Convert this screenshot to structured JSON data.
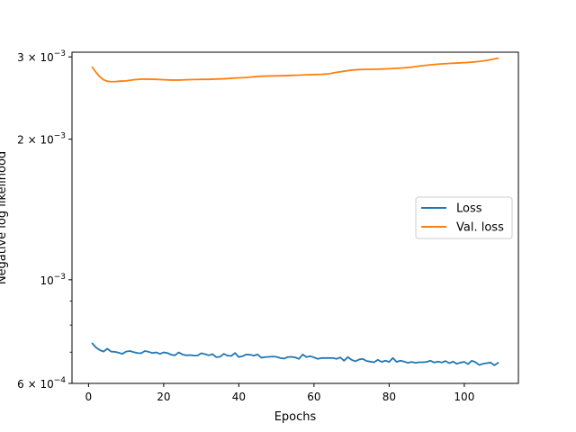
{
  "chart_data": {
    "type": "line",
    "title": "",
    "xlabel": "Epochs",
    "ylabel": "Negative log likelihood",
    "xlim": [
      -4.4,
      114.4
    ],
    "ylim": [
      0.0006,
      0.00307
    ],
    "y_scale": "log",
    "grid": false,
    "legend_position": "center-right",
    "x_ticks": [
      {
        "value": 0,
        "label": "0"
      },
      {
        "value": 20,
        "label": "20"
      },
      {
        "value": 40,
        "label": "40"
      },
      {
        "value": 60,
        "label": "60"
      },
      {
        "value": 80,
        "label": "80"
      },
      {
        "value": 100,
        "label": "100"
      }
    ],
    "y_ticks_major": [
      {
        "value": 0.0006,
        "base": "6 × 10",
        "exp": "−4"
      },
      {
        "value": 0.001,
        "base": "10",
        "exp": "−3"
      },
      {
        "value": 0.002,
        "base": "2 × 10",
        "exp": "−3"
      },
      {
        "value": 0.003,
        "base": "3 × 10",
        "exp": "−3"
      }
    ],
    "y_ticks_minor": [
      0.0007,
      0.0008,
      0.0009
    ],
    "series": [
      {
        "name": "Loss",
        "color": "#1f77b4",
        "x": [
          1,
          2,
          3,
          4,
          5,
          6,
          7,
          8,
          9,
          10,
          11,
          12,
          13,
          14,
          15,
          16,
          17,
          18,
          19,
          20,
          21,
          22,
          23,
          24,
          25,
          26,
          27,
          28,
          29,
          30,
          31,
          32,
          33,
          34,
          35,
          36,
          37,
          38,
          39,
          40,
          41,
          42,
          43,
          44,
          45,
          46,
          47,
          48,
          49,
          50,
          51,
          52,
          53,
          54,
          55,
          56,
          57,
          58,
          59,
          60,
          61,
          62,
          63,
          64,
          65,
          66,
          67,
          68,
          69,
          70,
          71,
          72,
          73,
          74,
          75,
          76,
          77,
          78,
          79,
          80,
          81,
          82,
          83,
          84,
          85,
          86,
          87,
          88,
          89,
          90,
          91,
          92,
          93,
          94,
          95,
          96,
          97,
          98,
          99,
          100,
          101,
          102,
          103,
          104,
          105,
          106,
          107,
          108,
          109
        ],
        "values": [
          0.000731,
          0.000716,
          0.000707,
          0.000702,
          0.000712,
          0.000702,
          0.000701,
          0.000698,
          0.000694,
          0.000702,
          0.000704,
          0.0007,
          0.000697,
          0.000696,
          0.000704,
          0.000701,
          0.000697,
          0.000699,
          0.000694,
          0.000699,
          0.000697,
          0.000691,
          0.000689,
          0.000699,
          0.000692,
          0.000689,
          0.00069,
          0.000688,
          0.000688,
          0.000696,
          0.000693,
          0.000689,
          0.000693,
          0.000683,
          0.000684,
          0.000694,
          0.000688,
          0.000687,
          0.000697,
          0.000683,
          0.000686,
          0.000692,
          0.000691,
          0.000688,
          0.000692,
          0.000681,
          0.000683,
          0.000684,
          0.000685,
          0.000684,
          0.00068,
          0.000678,
          0.000683,
          0.000684,
          0.000682,
          0.000677,
          0.000692,
          0.000683,
          0.000686,
          0.000682,
          0.000677,
          0.00068,
          0.00068,
          0.00068,
          0.00068,
          0.000677,
          0.000682,
          0.000671,
          0.000683,
          0.000674,
          0.000669,
          0.000675,
          0.000677,
          0.00067,
          0.000668,
          0.000666,
          0.000674,
          0.000667,
          0.000671,
          0.000667,
          0.00068,
          0.000667,
          0.000671,
          0.000668,
          0.000664,
          0.000667,
          0.000664,
          0.000666,
          0.000666,
          0.000667,
          0.000671,
          0.000665,
          0.000668,
          0.000665,
          0.00067,
          0.000663,
          0.000668,
          0.000661,
          0.000665,
          0.000667,
          0.00066,
          0.000671,
          0.000666,
          0.000657,
          0.000661,
          0.000663,
          0.000665,
          0.000656,
          0.000664
        ]
      },
      {
        "name": "Val. loss",
        "color": "#ff7f0e",
        "x": [
          1,
          2,
          3,
          4,
          5,
          6,
          7,
          8,
          9,
          10,
          12,
          14,
          16,
          18,
          20,
          22,
          24,
          26,
          28,
          30,
          32,
          34,
          36,
          38,
          40,
          42,
          44,
          46,
          48,
          50,
          52,
          54,
          56,
          58,
          60,
          62,
          64,
          66,
          68,
          70,
          72,
          74,
          76,
          78,
          80,
          82,
          84,
          86,
          88,
          90,
          92,
          94,
          96,
          98,
          100,
          102,
          104,
          106,
          108,
          109
        ],
        "values": [
          0.00285,
          0.00278,
          0.00272,
          0.00268,
          0.00266,
          0.002655,
          0.002655,
          0.00266,
          0.002663,
          0.002665,
          0.00268,
          0.002688,
          0.002688,
          0.002685,
          0.00268,
          0.002676,
          0.002676,
          0.00268,
          0.002683,
          0.002685,
          0.002685,
          0.00269,
          0.002693,
          0.0027,
          0.002705,
          0.00271,
          0.00272,
          0.002727,
          0.00273,
          0.002732,
          0.002735,
          0.002738,
          0.002742,
          0.002746,
          0.00275,
          0.002752,
          0.00276,
          0.00278,
          0.002795,
          0.00281,
          0.002818,
          0.00282,
          0.002822,
          0.002826,
          0.00283,
          0.002836,
          0.002842,
          0.002852,
          0.002868,
          0.002879,
          0.00289,
          0.002898,
          0.002904,
          0.00291,
          0.002916,
          0.002923,
          0.002933,
          0.002948,
          0.00297,
          0.00298
        ]
      }
    ]
  }
}
